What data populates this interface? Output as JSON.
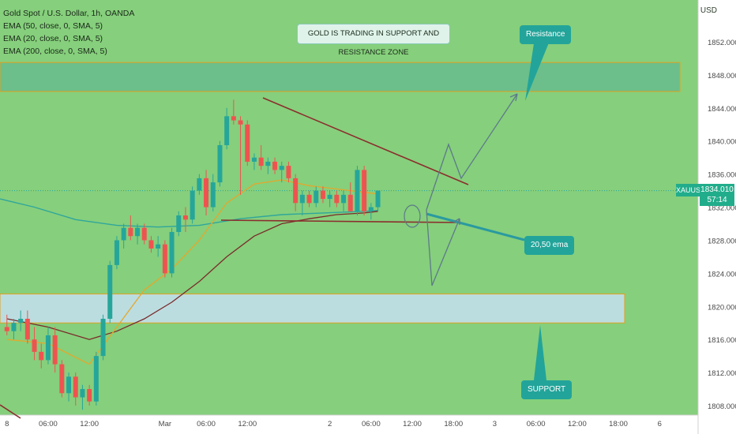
{
  "symbol_title": "Gold Spot / U.S. Dollar, 1h, OANDA",
  "indicators": [
    "EMA (50, close, 0, SMA, 5)",
    "EMA (20, close, 0, SMA, 5)",
    "EMA (200, close, 0, SMA, 5)"
  ],
  "currency": "USD",
  "headline": "GOLD IS TRADING IN SUPPORT AND RESISTANCE ZONE",
  "callouts": {
    "resistance": "Resistance",
    "ema": "20,50 ema",
    "support": "SUPPORT"
  },
  "price_badge": {
    "symbol": "XAUUSD",
    "price": "1834.010",
    "countdown": "57:14"
  },
  "colors": {
    "background": "#86cf7c",
    "up": "#26a69a",
    "down": "#ef5350",
    "resistance_zone": "#6cbf8a",
    "support_zone": "#bcdde0",
    "ema20": "#e4a72c",
    "ema50": "#7a2a2a",
    "ema200": "#2fa69c",
    "trendline": "#8b2d2d",
    "projection": "#5c7a8a"
  },
  "chart_data": {
    "type": "candlestick",
    "ylim": [
      1806,
      1856
    ],
    "y_ticks": [
      "1852.000",
      "1848.000",
      "1844.000",
      "1840.000",
      "1836.000",
      "1832.000",
      "1828.000",
      "1824.000",
      "1820.000",
      "1816.000",
      "1812.000",
      "1808.000"
    ],
    "x_ticks": [
      {
        "label": "8",
        "slot": 0
      },
      {
        "label": "06:00",
        "slot": 6
      },
      {
        "label": "12:00",
        "slot": 12
      },
      {
        "label": "Mar",
        "slot": 23
      },
      {
        "label": "06:00",
        "slot": 29
      },
      {
        "label": "12:00",
        "slot": 35
      },
      {
        "label": "2",
        "slot": 47
      },
      {
        "label": "06:00",
        "slot": 53
      },
      {
        "label": "12:00",
        "slot": 59
      },
      {
        "label": "18:00",
        "slot": 65
      },
      {
        "label": "3",
        "slot": 71
      },
      {
        "label": "06:00",
        "slot": 77
      },
      {
        "label": "12:00",
        "slot": 83
      },
      {
        "label": "18:00",
        "slot": 89
      },
      {
        "label": "6",
        "slot": 95
      }
    ],
    "candles": [
      {
        "o": 1817.5,
        "h": 1819.0,
        "l": 1816.5,
        "c": 1817.0
      },
      {
        "o": 1817.0,
        "h": 1818.5,
        "l": 1816.0,
        "c": 1818.0
      },
      {
        "o": 1818.0,
        "h": 1819.5,
        "l": 1817.0,
        "c": 1818.5
      },
      {
        "o": 1818.5,
        "h": 1819.5,
        "l": 1815.5,
        "c": 1816.0
      },
      {
        "o": 1816.0,
        "h": 1817.5,
        "l": 1813.5,
        "c": 1814.5
      },
      {
        "o": 1814.5,
        "h": 1815.5,
        "l": 1812.5,
        "c": 1813.5
      },
      {
        "o": 1813.5,
        "h": 1817.5,
        "l": 1813.0,
        "c": 1816.5
      },
      {
        "o": 1816.5,
        "h": 1817.5,
        "l": 1812.0,
        "c": 1813.0
      },
      {
        "o": 1813.0,
        "h": 1813.5,
        "l": 1809.0,
        "c": 1809.5
      },
      {
        "o": 1809.5,
        "h": 1812.0,
        "l": 1808.5,
        "c": 1811.5
      },
      {
        "o": 1811.5,
        "h": 1812.0,
        "l": 1808.0,
        "c": 1809.0
      },
      {
        "o": 1809.0,
        "h": 1810.5,
        "l": 1807.5,
        "c": 1810.0
      },
      {
        "o": 1810.0,
        "h": 1810.5,
        "l": 1808.0,
        "c": 1808.5
      },
      {
        "o": 1808.5,
        "h": 1814.5,
        "l": 1808.0,
        "c": 1814.0
      },
      {
        "o": 1814.0,
        "h": 1819.0,
        "l": 1813.5,
        "c": 1818.5
      },
      {
        "o": 1818.5,
        "h": 1825.5,
        "l": 1818.0,
        "c": 1825.0
      },
      {
        "o": 1825.0,
        "h": 1828.5,
        "l": 1824.5,
        "c": 1828.0
      },
      {
        "o": 1828.0,
        "h": 1830.0,
        "l": 1827.0,
        "c": 1829.5
      },
      {
        "o": 1829.5,
        "h": 1831.0,
        "l": 1828.0,
        "c": 1828.5
      },
      {
        "o": 1828.5,
        "h": 1830.0,
        "l": 1827.5,
        "c": 1829.5
      },
      {
        "o": 1829.5,
        "h": 1830.0,
        "l": 1827.5,
        "c": 1828.0
      },
      {
        "o": 1828.0,
        "h": 1828.5,
        "l": 1826.5,
        "c": 1827.0
      },
      {
        "o": 1827.0,
        "h": 1828.5,
        "l": 1826.0,
        "c": 1827.5
      },
      {
        "o": 1827.5,
        "h": 1828.0,
        "l": 1823.5,
        "c": 1824.0
      },
      {
        "o": 1824.0,
        "h": 1829.5,
        "l": 1823.5,
        "c": 1829.0
      },
      {
        "o": 1829.0,
        "h": 1831.5,
        "l": 1828.5,
        "c": 1831.0
      },
      {
        "o": 1831.0,
        "h": 1832.0,
        "l": 1829.0,
        "c": 1830.5
      },
      {
        "o": 1830.5,
        "h": 1834.5,
        "l": 1830.0,
        "c": 1834.0
      },
      {
        "o": 1834.0,
        "h": 1836.0,
        "l": 1833.5,
        "c": 1835.5
      },
      {
        "o": 1835.5,
        "h": 1836.5,
        "l": 1831.0,
        "c": 1832.0
      },
      {
        "o": 1832.0,
        "h": 1836.0,
        "l": 1831.5,
        "c": 1835.0
      },
      {
        "o": 1835.0,
        "h": 1840.0,
        "l": 1834.5,
        "c": 1839.5
      },
      {
        "o": 1839.5,
        "h": 1844.0,
        "l": 1839.0,
        "c": 1843.0
      },
      {
        "o": 1843.0,
        "h": 1845.0,
        "l": 1842.0,
        "c": 1842.5
      },
      {
        "o": 1842.5,
        "h": 1843.0,
        "l": 1833.5,
        "c": 1842.0
      },
      {
        "o": 1842.0,
        "h": 1842.5,
        "l": 1837.0,
        "c": 1837.5
      },
      {
        "o": 1837.5,
        "h": 1838.5,
        "l": 1836.5,
        "c": 1838.0
      },
      {
        "o": 1838.0,
        "h": 1839.5,
        "l": 1836.5,
        "c": 1837.0
      },
      {
        "o": 1837.0,
        "h": 1838.0,
        "l": 1836.0,
        "c": 1837.5
      },
      {
        "o": 1837.5,
        "h": 1838.0,
        "l": 1836.0,
        "c": 1836.5
      },
      {
        "o": 1836.5,
        "h": 1837.5,
        "l": 1835.0,
        "c": 1837.0
      },
      {
        "o": 1837.0,
        "h": 1837.5,
        "l": 1835.0,
        "c": 1835.5
      },
      {
        "o": 1835.5,
        "h": 1836.0,
        "l": 1831.5,
        "c": 1832.5
      },
      {
        "o": 1832.5,
        "h": 1834.0,
        "l": 1831.0,
        "c": 1833.5
      },
      {
        "o": 1833.5,
        "h": 1834.0,
        "l": 1832.0,
        "c": 1832.5
      },
      {
        "o": 1832.5,
        "h": 1834.5,
        "l": 1832.0,
        "c": 1834.0
      },
      {
        "o": 1834.0,
        "h": 1834.5,
        "l": 1832.5,
        "c": 1833.0
      },
      {
        "o": 1833.0,
        "h": 1834.0,
        "l": 1832.0,
        "c": 1833.5
      },
      {
        "o": 1833.5,
        "h": 1834.0,
        "l": 1832.0,
        "c": 1832.5
      },
      {
        "o": 1832.5,
        "h": 1834.0,
        "l": 1831.5,
        "c": 1833.5
      },
      {
        "o": 1833.5,
        "h": 1835.0,
        "l": 1831.5,
        "c": 1831.5
      },
      {
        "o": 1831.5,
        "h": 1837.0,
        "l": 1831.0,
        "c": 1836.5
      },
      {
        "o": 1836.5,
        "h": 1837.0,
        "l": 1831.0,
        "c": 1831.5
      },
      {
        "o": 1831.5,
        "h": 1832.5,
        "l": 1830.5,
        "c": 1832.0
      },
      {
        "o": 1832.0,
        "h": 1834.0,
        "l": 1831.5,
        "c": 1834.0
      }
    ],
    "ema20": [
      [
        0,
        1816.0
      ],
      [
        6,
        1815.5
      ],
      [
        12,
        1813.0
      ],
      [
        16,
        1817.5
      ],
      [
        20,
        1822.0
      ],
      [
        24,
        1824.5
      ],
      [
        28,
        1828.0
      ],
      [
        32,
        1832.5
      ],
      [
        36,
        1834.8
      ],
      [
        40,
        1835.3
      ],
      [
        44,
        1834.6
      ],
      [
        48,
        1834.2
      ],
      [
        52,
        1833.8
      ],
      [
        54,
        1833.6
      ]
    ],
    "ema50": [
      [
        0,
        1818.5
      ],
      [
        6,
        1817.5
      ],
      [
        12,
        1816.0
      ],
      [
        16,
        1817.0
      ],
      [
        20,
        1818.5
      ],
      [
        24,
        1820.5
      ],
      [
        28,
        1823.0
      ],
      [
        32,
        1826.0
      ],
      [
        36,
        1828.5
      ],
      [
        40,
        1830.0
      ],
      [
        44,
        1830.6
      ],
      [
        48,
        1831.1
      ],
      [
        52,
        1831.3
      ],
      [
        54,
        1831.5
      ]
    ],
    "ema200": [
      [
        -1,
        1833.0
      ],
      [
        4,
        1832.0
      ],
      [
        10,
        1830.5
      ],
      [
        16,
        1829.8
      ],
      [
        22,
        1829.6
      ],
      [
        28,
        1829.8
      ],
      [
        34,
        1830.6
      ],
      [
        40,
        1831.1
      ],
      [
        46,
        1831.3
      ],
      [
        52,
        1831.5
      ],
      [
        54,
        1831.6
      ]
    ],
    "resistance_zone": {
      "from": 1846.0,
      "to": 1849.5
    },
    "support_zone": {
      "from": 1818.0,
      "to": 1821.5
    }
  }
}
